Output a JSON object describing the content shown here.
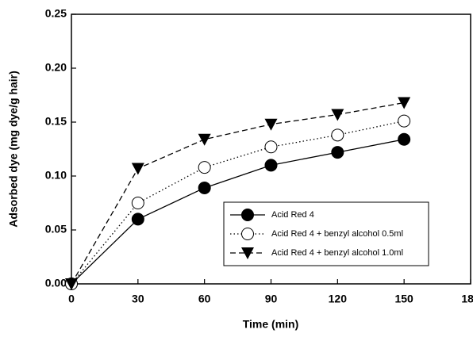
{
  "chart_data": {
    "type": "line",
    "xlabel": "Time (min)",
    "ylabel": "Adsorbed dye (mg dye/g hair)",
    "x": [
      0,
      30,
      60,
      90,
      120,
      150
    ],
    "series": [
      {
        "name": "Acid Red 4",
        "color": "#000000",
        "marker": "circle-filled",
        "line_style": "solid",
        "values": [
          0,
          0.06,
          0.089,
          0.11,
          0.122,
          0.134
        ]
      },
      {
        "name": "Acid Red 4 + benzyl alcohol 0.5ml",
        "color": "#000000",
        "marker": "circle-open",
        "line_style": "dotted",
        "values": [
          0,
          0.075,
          0.108,
          0.127,
          0.138,
          0.151
        ]
      },
      {
        "name": "Acid Red 4 + benzyl alcohol 1.0ml",
        "color": "#000000",
        "marker": "triangle-down",
        "line_style": "dashed",
        "values": [
          0,
          0.107,
          0.134,
          0.148,
          0.157,
          0.168
        ]
      }
    ],
    "xlim": [
      0,
      180
    ],
    "xticks": [
      0,
      30,
      60,
      90,
      120,
      150,
      180
    ],
    "ylim": [
      0,
      0.25
    ],
    "yticks": [
      {
        "value": 0,
        "label": "0.00"
      },
      {
        "value": 0.05,
        "label": "0.05"
      },
      {
        "value": 0.1,
        "label": "0.10"
      },
      {
        "value": 0.15,
        "label": "0.15"
      },
      {
        "value": 0.2,
        "label": "0.20"
      },
      {
        "value": 0.25,
        "label": "0.25"
      }
    ],
    "grid": false,
    "legend_position": "lower right"
  }
}
